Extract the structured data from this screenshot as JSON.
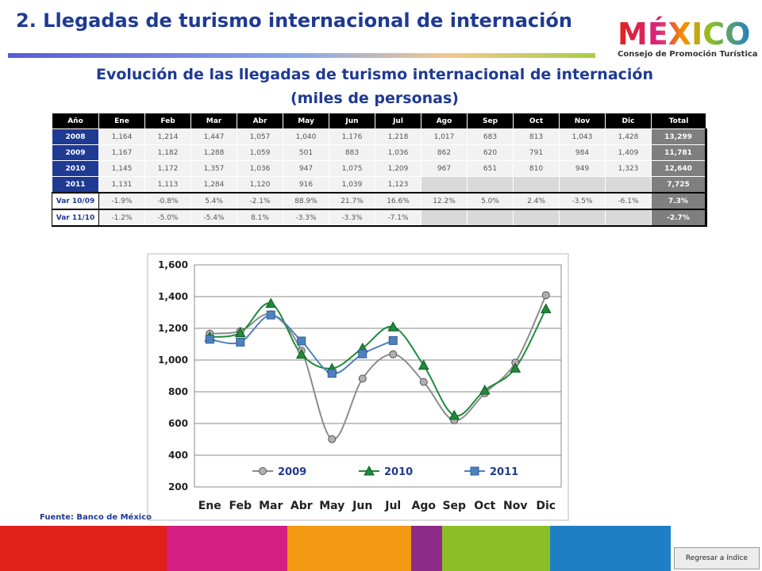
{
  "header": {
    "title": "2. Llegadas de turismo internacional de internación",
    "logo_text": "MÉXICO",
    "logo_subtitle": "Consejo de Promoción Turística"
  },
  "section_title": [
    "Evolución de las llegadas de turismo internacional de internación",
    "(miles de personas)"
  ],
  "table": {
    "header": [
      "Año",
      "Ene",
      "Feb",
      "Mar",
      "Abr",
      "May",
      "Jun",
      "Jul",
      "Ago",
      "Sep",
      "Oct",
      "Nov",
      "Dic",
      "Total"
    ],
    "rows": [
      [
        "2008",
        "1,164",
        "1,214",
        "1,447",
        "1,057",
        "1,040",
        "1,176",
        "1,218",
        "1,017",
        "683",
        "813",
        "1,043",
        "1,428",
        "13,299"
      ],
      [
        "2009",
        "1,167",
        "1,182",
        "1,288",
        "1,059",
        "501",
        "883",
        "1,036",
        "862",
        "620",
        "791",
        "984",
        "1,409",
        "11,781"
      ],
      [
        "2010",
        "1,145",
        "1,172",
        "1,357",
        "1,036",
        "947",
        "1,075",
        "1,209",
        "967",
        "651",
        "810",
        "949",
        "1,323",
        "12,640"
      ],
      [
        "2011",
        "1,131",
        "1,113",
        "1,284",
        "1,120",
        "916",
        "1,039",
        "1,123",
        null,
        null,
        null,
        null,
        null,
        "7,725"
      ],
      [
        "Var 10/09",
        "-1.9%",
        "-0.8%",
        "5.4%",
        "-2.1%",
        "88.9%",
        "21.7%",
        "16.6%",
        "12.2%",
        "5.0%",
        "2.4%",
        "-3.5%",
        "-6.1%",
        "7.3%"
      ],
      [
        "Var 11/10",
        "-1.2%",
        "-5.0%",
        "-5.4%",
        "8.1%",
        "-3.3%",
        "-3.3%",
        "-7.1%",
        null,
        null,
        null,
        null,
        null,
        "-2.7%"
      ]
    ]
  },
  "chart_data": {
    "type": "line",
    "categories": [
      "Ene",
      "Feb",
      "Mar",
      "Abr",
      "May",
      "Jun",
      "Jul",
      "Ago",
      "Sep",
      "Oct",
      "Nov",
      "Dic"
    ],
    "series": [
      {
        "name": "2009",
        "color": "#8c8c8c",
        "marker": "circle",
        "values": [
          1167,
          1182,
          1288,
          1059,
          501,
          883,
          1036,
          862,
          620,
          791,
          984,
          1409
        ]
      },
      {
        "name": "2010",
        "color": "#1f8a3a",
        "marker": "triangle",
        "values": [
          1145,
          1172,
          1357,
          1036,
          947,
          1075,
          1209,
          967,
          651,
          810,
          949,
          1323
        ]
      },
      {
        "name": "2011",
        "color": "#4f81bd",
        "marker": "square",
        "values": [
          1131,
          1113,
          1284,
          1120,
          916,
          1039,
          1123,
          null,
          null,
          null,
          null,
          null
        ]
      }
    ],
    "ylim": [
      200,
      1600
    ],
    "yticks": [
      200,
      400,
      600,
      800,
      {
        "value": 1000,
        "label": "1,000"
      },
      {
        "value": 1200,
        "label": "1,200"
      },
      {
        "value": 1400,
        "label": "1,400"
      },
      {
        "value": 1600,
        "label": "1,600"
      }
    ],
    "grid": true,
    "legend": "bottom"
  },
  "source": "Fuente: Banco de México",
  "button": "Regresar a índice"
}
